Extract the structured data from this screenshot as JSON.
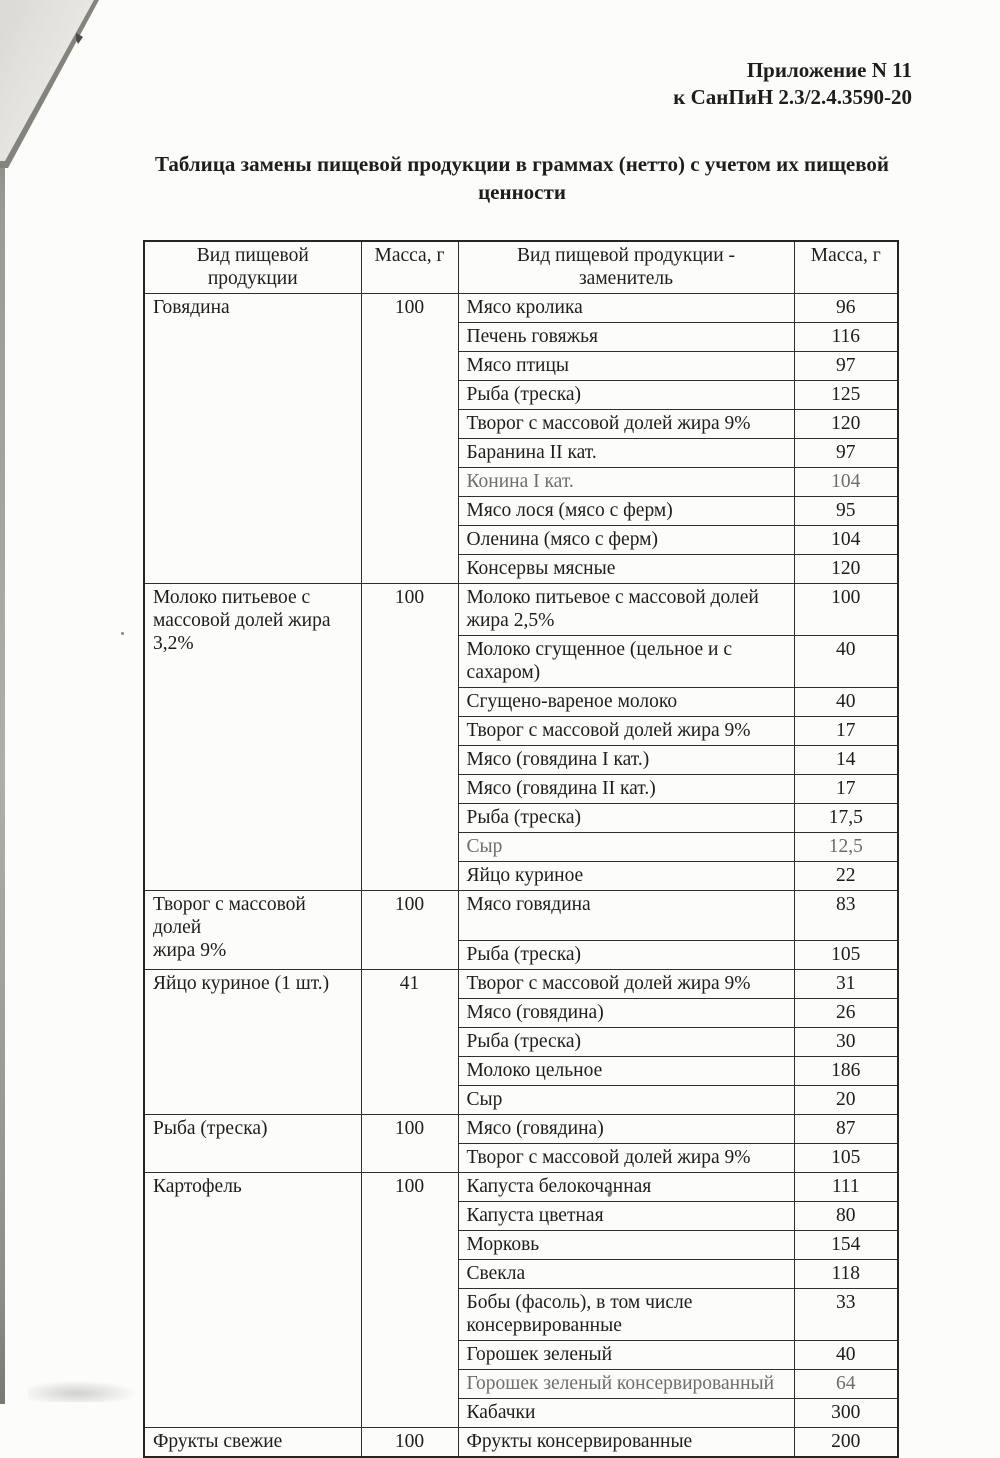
{
  "header": {
    "line1": "Приложение N 11",
    "line2": "к СанПиН 2.3/2.4.3590-20"
  },
  "title": "Таблица замены пищевой продукции в граммах (нетто) с учетом их пищевой ценности",
  "table": {
    "columns": [
      "Вид пищевой продукции",
      "Масса, г",
      "Вид пищевой продукции -\nзаменитель",
      "Масса, г"
    ],
    "groups": [
      {
        "product": "Говядина",
        "mass": "100",
        "substitutes": [
          {
            "name": "Мясо кролика",
            "mass": "96"
          },
          {
            "name": "Печень говяжья",
            "mass": "116"
          },
          {
            "name": "Мясо птицы",
            "mass": "97"
          },
          {
            "name": "Рыба (треска)",
            "mass": "125"
          },
          {
            "name": "Творог с массовой долей жира 9%",
            "mass": "120"
          },
          {
            "name": "Баранина II кат.",
            "mass": "97"
          },
          {
            "name": "Конина I кат.",
            "mass": "104",
            "faded": true
          },
          {
            "name": "Мясо лося (мясо с ферм)",
            "mass": "95"
          },
          {
            "name": "Оленина (мясо с ферм)",
            "mass": "104"
          },
          {
            "name": "Консервы мясные",
            "mass": "120"
          }
        ]
      },
      {
        "product": "Молоко питьевое с массовой долей жира 3,2%",
        "mass": "100",
        "substitutes": [
          {
            "name": "Молоко питьевое с массовой долей жира 2,5%",
            "mass": "100"
          },
          {
            "name": "Молоко сгущенное (цельное и с сахаром)",
            "mass": "40"
          },
          {
            "name": "Сгущено-вареное молоко",
            "mass": "40"
          },
          {
            "name": "Творог с массовой долей жира 9%",
            "mass": "17"
          },
          {
            "name": "Мясо (говядина I кат.)",
            "mass": "14"
          },
          {
            "name": "Мясо (говядина II кат.)",
            "mass": "17"
          },
          {
            "name": "Рыба (треска)",
            "mass": "17,5"
          },
          {
            "name": "Сыр",
            "mass": "12,5",
            "faded": true
          },
          {
            "name": "Яйцо куриное",
            "mass": "22"
          }
        ]
      },
      {
        "product": "Творог с массовой\nдолей\nжира 9%",
        "mass": "100",
        "substitutes": [
          {
            "name": "Мясо говядина",
            "mass": "83",
            "tall": true
          },
          {
            "name": "Рыба (треска)",
            "mass": "105"
          }
        ]
      },
      {
        "product": "Яйцо куриное (1 шт.)",
        "mass": "41",
        "substitutes": [
          {
            "name": "Творог с массовой долей жира 9%",
            "mass": "31"
          },
          {
            "name": "Мясо (говядина)",
            "mass": "26"
          },
          {
            "name": "Рыба (треска)",
            "mass": "30"
          },
          {
            "name": "Молоко цельное",
            "mass": "186"
          },
          {
            "name": "Сыр",
            "mass": "20"
          }
        ]
      },
      {
        "product": "Рыба (треска)",
        "mass": "100",
        "substitutes": [
          {
            "name": "Мясо (говядина)",
            "mass": "87"
          },
          {
            "name": "Творог с массовой долей жира 9%",
            "mass": "105"
          }
        ]
      },
      {
        "product": "Картофель",
        "mass": "100",
        "substitutes": [
          {
            "name": "Капуста белокочанная",
            "mass": "111"
          },
          {
            "name": "Капуста цветная",
            "mass": "80"
          },
          {
            "name": "Морковь",
            "mass": "154"
          },
          {
            "name": "Свекла",
            "mass": "118"
          },
          {
            "name": "Бобы (фасоль), в том числе консервированные",
            "mass": "33"
          },
          {
            "name": "Горошек зеленый",
            "mass": "40"
          },
          {
            "name": "Горошек зеленый консервированный",
            "mass": "64",
            "faded": true
          },
          {
            "name": "Кабачки",
            "mass": "300"
          }
        ]
      },
      {
        "product": "Фрукты свежие",
        "mass": "100",
        "substitutes": [
          {
            "name": "Фрукты консервированные",
            "mass": "200"
          }
        ]
      }
    ]
  }
}
